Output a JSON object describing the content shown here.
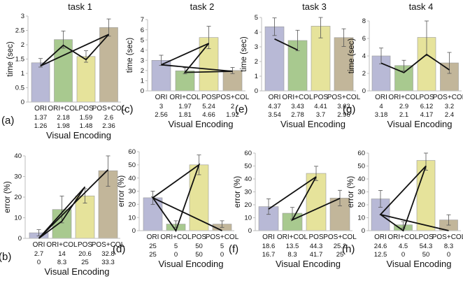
{
  "colors": {
    "bars": [
      "#b8b9d6",
      "#a8c98f",
      "#e6e39b",
      "#c2b69a"
    ],
    "edge": "#9a9a9a",
    "axis": "#bdbdbd",
    "error_bar": "#555555",
    "line": "#111111"
  },
  "chart_data": [
    {
      "type": "bar",
      "title": "task 1",
      "tag": "(a)",
      "ylabel": "time (sec)",
      "xlabel": "Visual Encoding",
      "categories": [
        "ORI",
        "ORI+COL",
        "POS",
        "POS+COL"
      ],
      "values": [
        1.37,
        2.18,
        1.59,
        2.6
      ],
      "errors": [
        0.15,
        0.3,
        0.2,
        0.3
      ],
      "ylim": [
        0,
        3
      ],
      "yticks": [
        "0",
        "0.5",
        "1",
        "1.5",
        "2",
        "2.5",
        "3"
      ],
      "row1": [
        "1.37",
        "2.18",
        "1.59",
        "2.6"
      ],
      "row2": [
        "1.26",
        "1.98",
        "1.48",
        "2.36"
      ],
      "line_values": [
        1.26,
        1.98,
        1.48,
        2.36
      ],
      "line_order": [
        0,
        1,
        2,
        3,
        0
      ]
    },
    {
      "type": "bar",
      "title": "task 2",
      "tag": "(c)",
      "ylabel": "time (sec)",
      "xlabel": "Visual Encoding",
      "categories": [
        "ORI",
        "ORI+COL",
        "POS",
        "POS+COL"
      ],
      "values": [
        3,
        1.97,
        5.24,
        2
      ],
      "errors": [
        0.5,
        0.3,
        1.1,
        0.3
      ],
      "ylim": [
        0,
        7
      ],
      "yticks": [
        "0",
        "1",
        "2",
        "3",
        "4",
        "5",
        "6",
        "7"
      ],
      "row1": [
        "3",
        "1.97",
        "5.24",
        "2"
      ],
      "row2": [
        "2.56",
        "1.81",
        "4.66",
        "1.92"
      ],
      "line_values": [
        2.56,
        1.81,
        4.66,
        1.92
      ],
      "line_order": [
        0,
        2,
        1,
        3,
        0
      ]
    },
    {
      "type": "bar",
      "title": "task 3",
      "tag": "(e)",
      "ylabel": "time (sec)",
      "xlabel": "Visual Encoding",
      "categories": [
        "ORI",
        "ORI+COL",
        "POS",
        "POS+COL"
      ],
      "values": [
        4.37,
        3.43,
        4.41,
        3.63
      ],
      "errors": [
        0.6,
        0.7,
        0.8,
        0.6
      ],
      "ylim": [
        0,
        5
      ],
      "yticks": [
        "0",
        "1",
        "2",
        "3",
        "4",
        "5"
      ],
      "row1": [
        "4.37",
        "3.43",
        "4.41",
        "3.63"
      ],
      "row2": [
        "3.54",
        "2.78",
        "3.7",
        "2.96"
      ],
      "line_values": [
        3.54,
        2.78,
        3.7,
        2.96
      ],
      "line_order": [
        0,
        1
      ]
    },
    {
      "type": "bar",
      "title": "task 4",
      "tag": "(g)",
      "ylabel": "time (sec)",
      "xlabel": "Visual Encoding",
      "categories": [
        "ORI",
        "ORI+COL",
        "POS",
        "POS+COL"
      ],
      "values": [
        4,
        2.9,
        6.12,
        3.2
      ],
      "errors": [
        0.9,
        0.6,
        2.1,
        1.2
      ],
      "ylim": [
        0,
        8
      ],
      "yticks": [
        "0",
        "2",
        "4",
        "6",
        "8"
      ],
      "row1": [
        "4",
        "2.9",
        "6.12",
        "3.2"
      ],
      "row2": [
        "3.18",
        "2.1",
        "4.17",
        "2.4"
      ],
      "line_values": [
        3.18,
        2.1,
        4.17,
        2.4
      ],
      "line_order": [
        0,
        1,
        2,
        3
      ]
    },
    {
      "type": "bar",
      "title": "",
      "tag": "(b)",
      "ylabel": "error (%)",
      "xlabel": "Visual Encoding",
      "categories": [
        "ORI",
        "ORI+COL",
        "POS",
        "POS+COL"
      ],
      "values": [
        2.7,
        14,
        20.6,
        32.8
      ],
      "errors": [
        1.5,
        6.5,
        3.5,
        7.5
      ],
      "ylim": [
        0,
        40
      ],
      "yticks": [
        "0",
        "10",
        "20",
        "30",
        "40"
      ],
      "row1": [
        "2.7",
        "14",
        "20.6",
        "32.8"
      ],
      "row2": [
        "0",
        "8.3",
        "25",
        "33.3"
      ],
      "line_values": [
        0,
        8.3,
        25,
        33.3
      ],
      "line_order": [
        3,
        0,
        2,
        1,
        0,
        3
      ]
    },
    {
      "type": "bar",
      "title": "",
      "tag": "(d)",
      "ylabel": "error (%)",
      "xlabel": "Visual Encoding",
      "categories": [
        "ORI",
        "ORI+COL",
        "POS",
        "POS+COL"
      ],
      "values": [
        25,
        5,
        50,
        5
      ],
      "errors": [
        5,
        2.5,
        7.5,
        2.5
      ],
      "ylim": [
        0,
        60
      ],
      "yticks": [
        "0",
        "10",
        "20",
        "30",
        "40",
        "50",
        "60"
      ],
      "row1": [
        "25",
        "5",
        "50",
        "5"
      ],
      "row2": [
        "25",
        "0",
        "50",
        "0"
      ],
      "line_values": [
        25,
        0,
        50,
        0
      ],
      "line_order": [
        0,
        2,
        1,
        0,
        3
      ]
    },
    {
      "type": "bar",
      "title": "",
      "tag": "(f)",
      "ylabel": "error (%)",
      "xlabel": "Visual Encoding",
      "categories": [
        "ORI",
        "ORI+COL",
        "POS",
        "POS+COL"
      ],
      "values": [
        18.6,
        13.5,
        44.3,
        25.2
      ],
      "errors": [
        6,
        4.5,
        5.5,
        6
      ],
      "ylim": [
        0,
        60
      ],
      "yticks": [
        "0",
        "10",
        "20",
        "30",
        "40",
        "50",
        "60"
      ],
      "row1": [
        "18.6",
        "13.5",
        "44.3",
        "25.2"
      ],
      "row2": [
        "16.7",
        "8.3",
        "41.7",
        "25"
      ],
      "line_values": [
        16.7,
        8.3,
        41.7,
        25
      ],
      "line_order": [
        0,
        2,
        1,
        3,
        1
      ]
    },
    {
      "type": "bar",
      "title": "",
      "tag": "(h)",
      "ylabel": "error (%)",
      "xlabel": "Visual Encoding",
      "categories": [
        "ORI",
        "ORI+COL",
        "POS",
        "POS+COL"
      ],
      "values": [
        24.6,
        4.5,
        54.3,
        8.3
      ],
      "errors": [
        6.5,
        2.5,
        7.5,
        4
      ],
      "ylim": [
        0,
        60
      ],
      "yticks": [
        "0",
        "10",
        "20",
        "30",
        "40",
        "50",
        "60"
      ],
      "row1": [
        "24.6",
        "4.5",
        "54.3",
        "8.3"
      ],
      "row2": [
        "12.5",
        "0",
        "50",
        "0"
      ],
      "line_values": [
        12.5,
        0,
        50,
        0
      ],
      "line_order": [
        3,
        0,
        2,
        1,
        0
      ]
    }
  ]
}
